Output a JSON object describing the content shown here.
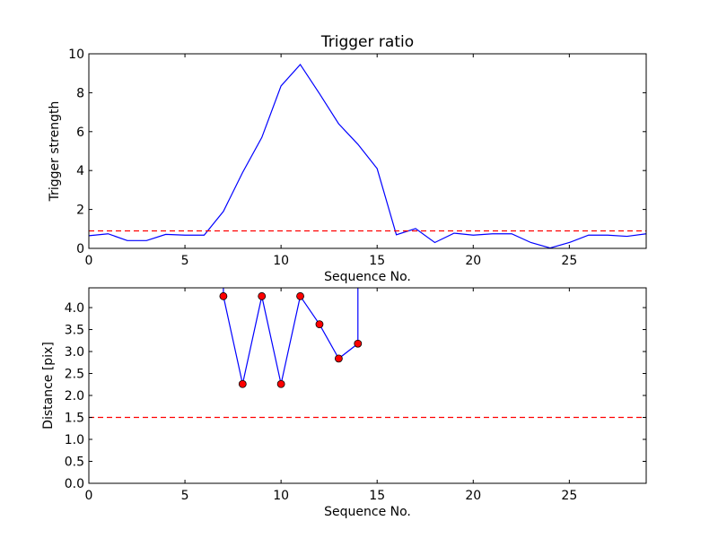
{
  "chart_data": [
    {
      "type": "line",
      "title": "Trigger ratio",
      "xlabel": "Sequence No.",
      "ylabel": "Trigger strength",
      "xlim": [
        0,
        29
      ],
      "ylim": [
        0,
        10
      ],
      "xticks": [
        0,
        5,
        10,
        15,
        20,
        25
      ],
      "yticks": [
        0,
        2,
        4,
        6,
        8,
        10
      ],
      "grid": false,
      "series": [
        {
          "color": "#0000ff",
          "style": "solid",
          "x": [
            0,
            1,
            2,
            3,
            4,
            5,
            6,
            7,
            8,
            9,
            10,
            11,
            12,
            13,
            14,
            15,
            16,
            17,
            18,
            19,
            20,
            21,
            22,
            23,
            24,
            25,
            26,
            27,
            28,
            29
          ],
          "y": [
            0.65,
            0.75,
            0.4,
            0.4,
            0.72,
            0.68,
            0.68,
            1.9,
            3.9,
            5.7,
            8.35,
            9.45,
            7.95,
            6.4,
            5.35,
            4.1,
            0.7,
            1.02,
            0.3,
            0.78,
            0.68,
            0.75,
            0.75,
            0.3,
            0.02,
            0.3,
            0.68,
            0.68,
            0.62,
            0.75
          ]
        },
        {
          "color": "#ff0000",
          "style": "dashed",
          "x": [
            0,
            29
          ],
          "y": [
            0.9,
            0.9
          ]
        }
      ]
    },
    {
      "type": "line",
      "title": "",
      "xlabel": "Sequence No.",
      "ylabel": "Distance [pix]",
      "xlim": [
        0,
        29
      ],
      "ylim": [
        0,
        4.45
      ],
      "xticks": [
        0,
        5,
        10,
        15,
        20,
        25
      ],
      "yticks": [
        0.0,
        0.5,
        1.0,
        1.5,
        2.0,
        2.5,
        3.0,
        3.5,
        4.0
      ],
      "grid": false,
      "series": [
        {
          "color": "#0000ff",
          "style": "solid",
          "marker": "circle",
          "marker_color": "#ff0000",
          "x": [
            7,
            8,
            9,
            10,
            11,
            12,
            13,
            14
          ],
          "y": [
            4.26,
            2.26,
            4.26,
            2.26,
            4.26,
            3.62,
            2.84,
            3.18
          ]
        },
        {
          "color": "#0000ff",
          "style": "solid",
          "x": [
            7,
            7
          ],
          "y": [
            4.26,
            4.45
          ]
        },
        {
          "color": "#0000ff",
          "style": "solid",
          "x": [
            14,
            14
          ],
          "y": [
            3.18,
            4.45
          ]
        },
        {
          "color": "#ff0000",
          "style": "dashed",
          "x": [
            0,
            29
          ],
          "y": [
            1.5,
            1.5
          ]
        }
      ]
    }
  ]
}
